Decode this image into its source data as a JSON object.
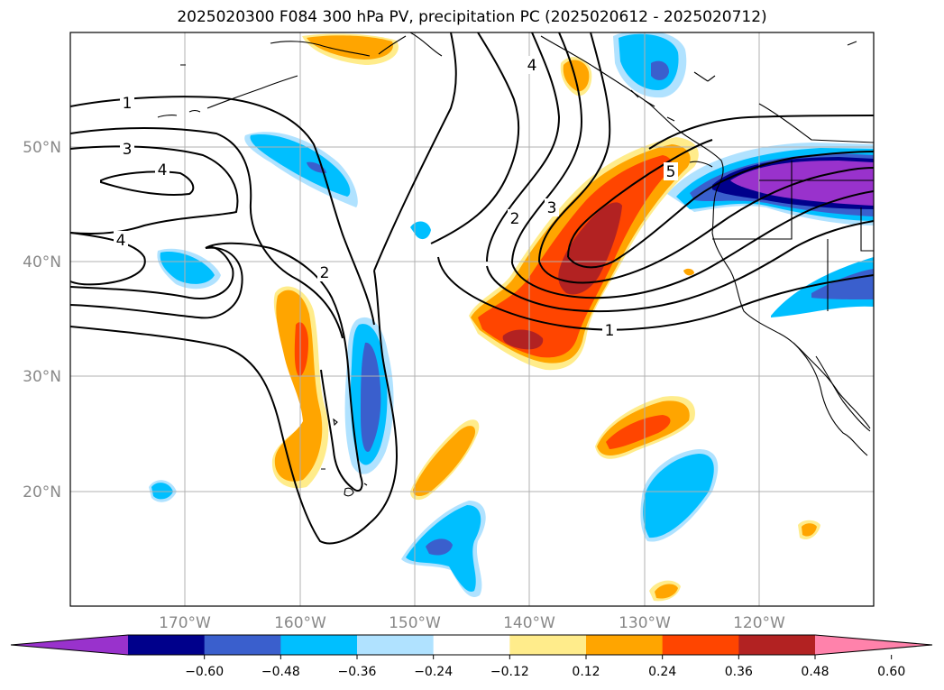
{
  "title": "2025020300 F084 300 hPa PV, precipitation PC (2025020612 - 2025020712)",
  "lat_labels": [
    "50°N",
    "40°N",
    "30°N",
    "20°N"
  ],
  "lon_labels": [
    "170°W",
    "160°W",
    "150°W",
    "140°W",
    "130°W",
    "120°W"
  ],
  "contour_labels": [
    "1",
    "3",
    "4",
    "4",
    "2",
    "2",
    "3",
    "4",
    "5",
    "1"
  ],
  "colorbar": {
    "ticks": [
      "−0.60",
      "−0.48",
      "−0.36",
      "−0.24",
      "−0.12",
      "0.12",
      "0.24",
      "0.36",
      "0.48",
      "0.60"
    ],
    "colors": [
      "#9932cc",
      "#00008b",
      "#3a5fcd",
      "#00bfff",
      "#b0e2ff",
      "#ffffff",
      "#ffec8b",
      "#ffa500",
      "#ff4500",
      "#b22222",
      "#ff82ab"
    ]
  }
}
